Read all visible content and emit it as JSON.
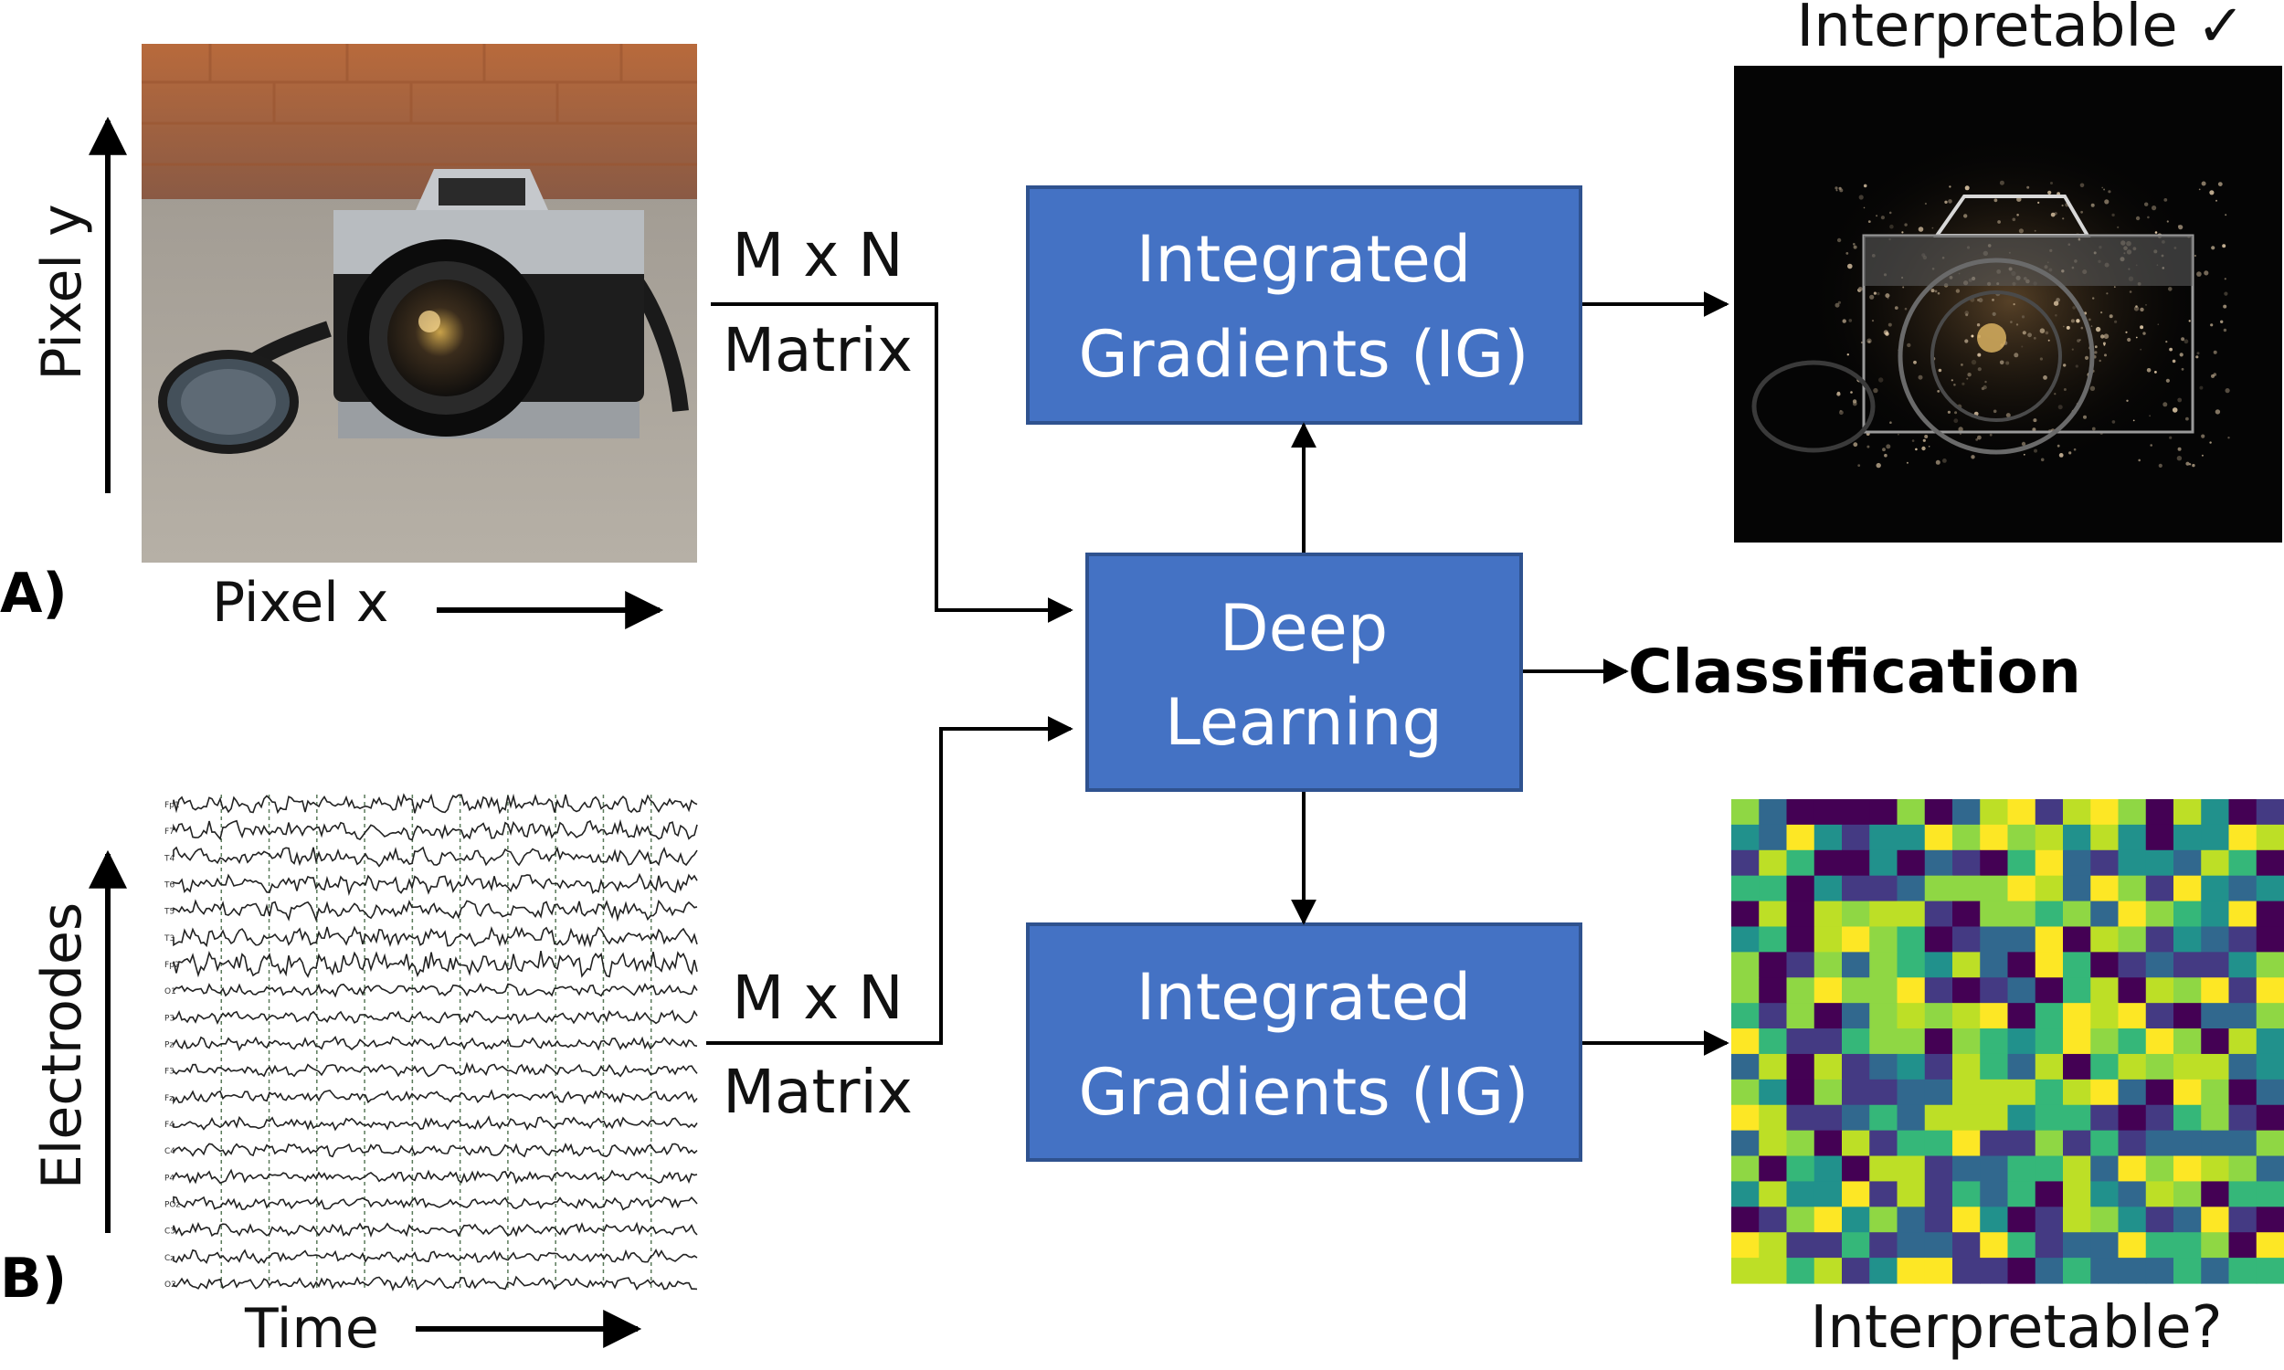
{
  "colors": {
    "box_fill": "#4472c4",
    "box_stroke": "#2f528f",
    "arrow": "#000000",
    "text": "#111111",
    "viridis": [
      "#440154",
      "#443a83",
      "#31688e",
      "#21918c",
      "#35b779",
      "#8fd744",
      "#bddf26",
      "#fde725"
    ]
  },
  "panel_a": {
    "letter": "A)",
    "y_axis_label": "Pixel y",
    "x_axis_label": "Pixel x",
    "matrix_line1": "M x N",
    "matrix_line2": "Matrix",
    "input_image": "camera-photo",
    "output_label": "Interpretable ✓",
    "output_image": "camera-attribution-map"
  },
  "panel_b": {
    "letter": "B)",
    "y_axis_label": "Electrodes",
    "x_axis_label": "Time",
    "matrix_line1": "M x N",
    "matrix_line2": "Matrix",
    "electrodes": [
      "Fp1",
      "F7",
      "T4",
      "T6",
      "T5",
      "T3",
      "Fp2",
      "O1",
      "P3",
      "Pz",
      "F3",
      "Fz",
      "F4",
      "C4",
      "P4",
      "POz",
      "C3",
      "Cz",
      "O2"
    ],
    "output_label": "Interpretable?",
    "output_image": "heatmap-attribution-grid"
  },
  "boxes": {
    "ig_top": {
      "line1": "Integrated",
      "line2": "Gradients (IG)"
    },
    "deep_learning": {
      "line1": "Deep",
      "line2": "Learning"
    },
    "ig_bottom": {
      "line1": "Integrated",
      "line2": "Gradients (IG)"
    }
  },
  "output": {
    "classification": "Classification"
  }
}
